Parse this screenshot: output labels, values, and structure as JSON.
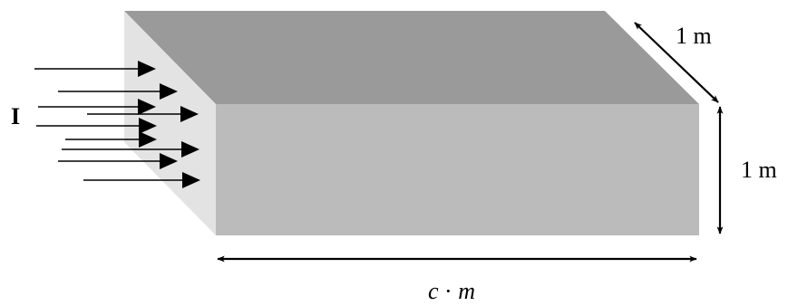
{
  "labels": {
    "intensity": "I",
    "depth": "1 m",
    "height": "1 m",
    "length_c": "c",
    "length_dot": " · ",
    "length_m": "m"
  },
  "colors": {
    "top_face": "#9a9a9a",
    "front_face": "#bbbbbb",
    "side_face": "#e3e3e3",
    "arrow": "#000000",
    "text": "#000000"
  },
  "icons": {
    "incident_arrow": "right-arrow",
    "dimension_arrow": "double-headed-arrow"
  },
  "incident_arrow_count": 9
}
